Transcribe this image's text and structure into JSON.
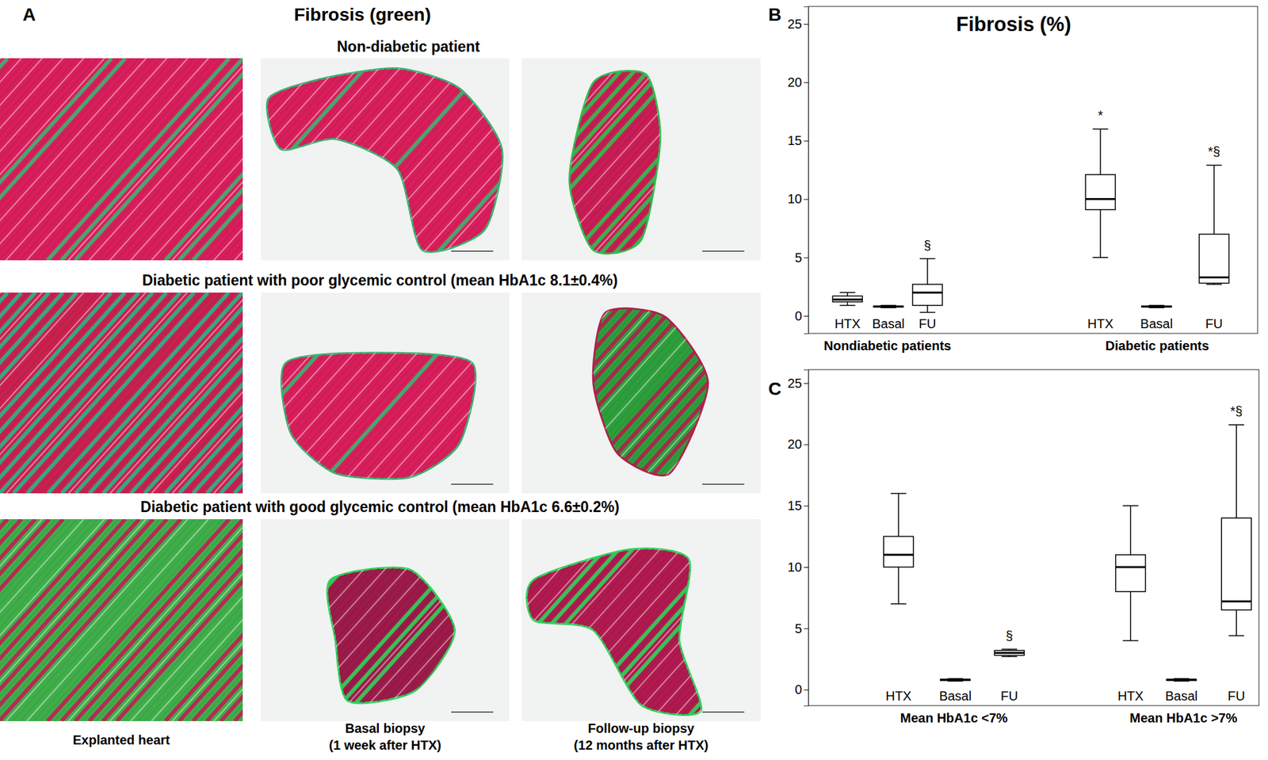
{
  "panel_a": {
    "label": "A",
    "title": "Fibrosis (green)",
    "rows": [
      {
        "title": "Non-diabetic patient"
      },
      {
        "title": "Diabetic patient with poor glycemic control (mean HbA1c 8.1±0.4%)"
      },
      {
        "title": "Diabetic patient with good glycemic control (mean HbA1c 6.6±0.2%)"
      }
    ],
    "columns": [
      [
        "Explanted heart"
      ],
      [
        "Basal biopsy",
        "(1 week after HTX)"
      ],
      [
        "Follow-up biopsy",
        "(12 months after HTX)"
      ]
    ]
  },
  "chart_data": [
    {
      "type": "box",
      "panel_label": "B",
      "title": "Fibrosis (%)",
      "categories": [
        "HTX",
        "Basal",
        "FU",
        "HTX",
        "Basal",
        "FU"
      ],
      "group_labels": [
        "Nondiabetic patients",
        "Diabetic patients"
      ],
      "boxes": [
        {
          "whisker_low": 0.9,
          "q1": 1.2,
          "median": 1.4,
          "q3": 1.7,
          "whisker_high": 2.0
        },
        {
          "whisker_low": 0.7,
          "q1": 0.75,
          "median": 0.8,
          "q3": 0.85,
          "whisker_high": 0.9
        },
        {
          "whisker_low": 0.3,
          "q1": 0.9,
          "median": 2.0,
          "q3": 2.7,
          "whisker_high": 4.9
        },
        {
          "whisker_low": 5,
          "q1": 9.1,
          "median": 10,
          "q3": 12.1,
          "whisker_high": 16
        },
        {
          "whisker_low": 0.7,
          "q1": 0.75,
          "median": 0.8,
          "q3": 0.85,
          "whisker_high": 0.9
        },
        {
          "whisker_low": 2.7,
          "q1": 2.8,
          "median": 3.3,
          "q3": 7,
          "whisker_high": 12.9
        }
      ],
      "annotations": [
        null,
        null,
        "§",
        "*",
        null,
        "*§"
      ],
      "color": "#000000",
      "ylim": [
        -1.5,
        26.5
      ],
      "yticks": [
        0,
        5,
        10,
        15,
        20,
        25
      ]
    },
    {
      "type": "box",
      "panel_label": "C",
      "categories": [
        "HTX",
        "Basal",
        "FU",
        "HTX",
        "Basal",
        "FU"
      ],
      "group_labels": [
        "Mean HbA1c <7%",
        "Mean HbA1c >7%"
      ],
      "boxes": [
        {
          "whisker_low": 7,
          "q1": 10,
          "median": 11,
          "q3": 12.5,
          "whisker_high": 16
        },
        {
          "whisker_low": 0.7,
          "q1": 0.75,
          "median": 0.8,
          "q3": 0.85,
          "whisker_high": 0.9
        },
        {
          "whisker_low": 2.7,
          "q1": 2.8,
          "median": 3.0,
          "q3": 3.2,
          "whisker_high": 3.3
        },
        {
          "whisker_low": 4,
          "q1": 8,
          "median": 10,
          "q3": 11,
          "whisker_high": 15
        },
        {
          "whisker_low": 0.7,
          "q1": 0.75,
          "median": 0.8,
          "q3": 0.85,
          "whisker_high": 0.9
        },
        {
          "whisker_low": 4.4,
          "q1": 6.5,
          "median": 7.2,
          "q3": 14,
          "whisker_high": 21.6
        }
      ],
      "annotations": [
        null,
        null,
        "§",
        null,
        null,
        "*§"
      ],
      "color": "#000000",
      "ylim": [
        -1.3,
        26.1
      ],
      "yticks": [
        0,
        5,
        10,
        15,
        20,
        25
      ]
    }
  ]
}
